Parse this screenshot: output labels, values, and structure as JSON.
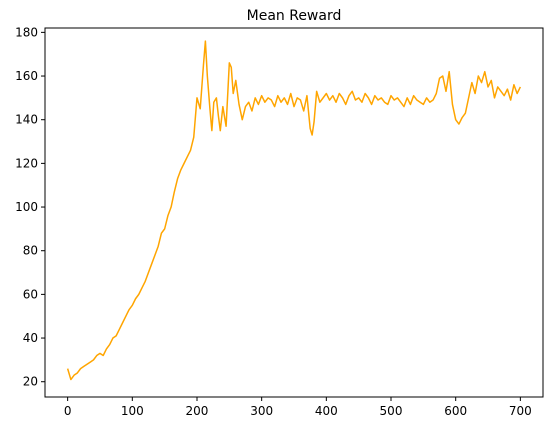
{
  "chart_data": {
    "type": "line",
    "title": "Mean Reward",
    "xlabel": "",
    "ylabel": "",
    "xlim": [
      -35,
      735
    ],
    "ylim": [
      13,
      182
    ],
    "xticks": [
      0,
      100,
      200,
      300,
      400,
      500,
      600,
      700
    ],
    "yticks": [
      20,
      40,
      60,
      80,
      100,
      120,
      140,
      160,
      180
    ],
    "grid": false,
    "legend": "none",
    "color": "#FFA500",
    "series": [
      {
        "x": [
          0,
          5,
          10,
          15,
          20,
          25,
          30,
          35,
          40,
          45,
          50,
          55,
          60,
          65,
          70,
          75,
          80,
          85,
          90,
          95,
          100,
          105,
          110,
          115,
          120,
          125,
          130,
          135,
          140,
          145,
          150,
          155,
          160,
          165,
          170,
          175,
          180,
          185,
          190,
          195,
          200,
          205,
          210,
          213,
          216,
          220,
          223,
          226,
          230,
          233,
          236,
          240,
          245,
          250,
          253,
          256,
          260,
          265,
          270,
          275,
          280,
          285,
          290,
          295,
          300,
          305,
          310,
          315,
          320,
          325,
          330,
          335,
          340,
          345,
          350,
          355,
          360,
          365,
          370,
          375,
          378,
          381,
          385,
          390,
          395,
          400,
          405,
          410,
          415,
          420,
          425,
          430,
          435,
          440,
          445,
          450,
          455,
          460,
          465,
          470,
          475,
          480,
          485,
          490,
          495,
          500,
          505,
          510,
          515,
          520,
          525,
          530,
          535,
          540,
          545,
          550,
          555,
          560,
          565,
          570,
          575,
          580,
          585,
          590,
          595,
          600,
          605,
          610,
          615,
          620,
          625,
          630,
          635,
          640,
          645,
          650,
          655,
          660,
          665,
          670,
          675,
          680,
          685,
          690,
          695,
          700
        ],
        "y": [
          26,
          21,
          23,
          24,
          26,
          27,
          28,
          29,
          30,
          32,
          33,
          32,
          35,
          37,
          40,
          41,
          44,
          47,
          50,
          53,
          55,
          58,
          60,
          63,
          66,
          70,
          74,
          78,
          82,
          88,
          90,
          96,
          100,
          107,
          113,
          117,
          120,
          123,
          126,
          132,
          150,
          145,
          165,
          176,
          160,
          145,
          135,
          148,
          150,
          142,
          135,
          146,
          137,
          166,
          164,
          152,
          158,
          147,
          140,
          146,
          148,
          144,
          150,
          147,
          151,
          148,
          150,
          149,
          146,
          151,
          148,
          150,
          147,
          152,
          146,
          150,
          149,
          144,
          151,
          136,
          133,
          139,
          153,
          148,
          150,
          152,
          149,
          151,
          148,
          152,
          150,
          147,
          151,
          153,
          149,
          150,
          148,
          152,
          150,
          147,
          151,
          149,
          150,
          148,
          147,
          151,
          149,
          150,
          148,
          146,
          150,
          147,
          151,
          149,
          148,
          147,
          150,
          148,
          149,
          152,
          159,
          160,
          153,
          162,
          147,
          140,
          138,
          141,
          143,
          150,
          157,
          152,
          160,
          157,
          162,
          155,
          158,
          150,
          155,
          153,
          151,
          154,
          149,
          156,
          152,
          155
        ]
      }
    ]
  }
}
